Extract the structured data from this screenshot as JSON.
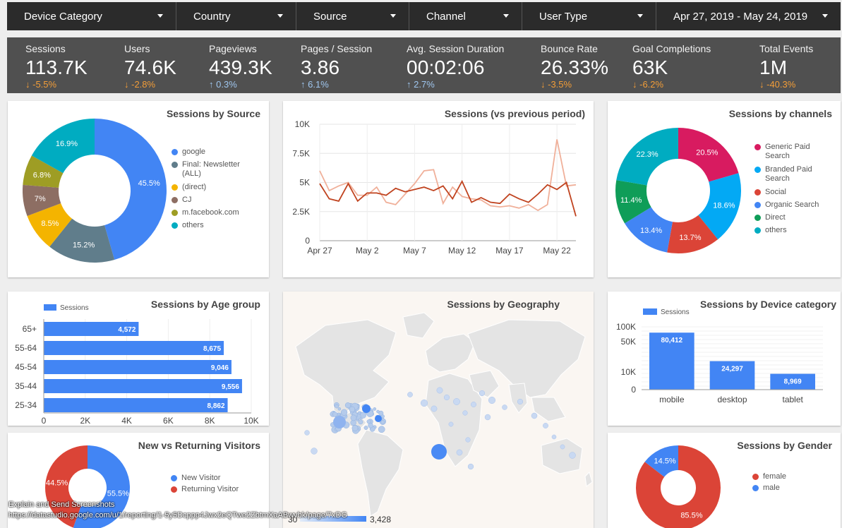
{
  "filters": [
    {
      "label": "Device Category"
    },
    {
      "label": "Country"
    },
    {
      "label": "Source"
    },
    {
      "label": "Channel"
    },
    {
      "label": "User Type"
    },
    {
      "label": "Apr 27, 2019 - May 24, 2019"
    }
  ],
  "kpis": [
    {
      "label": "Sessions",
      "value": "113.7K",
      "delta": "-5.5%",
      "dir": "down"
    },
    {
      "label": "Users",
      "value": "74.6K",
      "delta": "-2.8%",
      "dir": "down"
    },
    {
      "label": "Pageviews",
      "value": "439.3K",
      "delta": "0.3%",
      "dir": "up"
    },
    {
      "label": "Pages / Session",
      "value": "3.86",
      "delta": "6.1%",
      "dir": "up"
    },
    {
      "label": "Avg. Session Duration",
      "value": "00:02:06",
      "delta": "2.7%",
      "dir": "up"
    },
    {
      "label": "Bounce Rate",
      "value": "26.33%",
      "delta": "-3.5%",
      "dir": "down"
    },
    {
      "label": "Goal Completions",
      "value": "63K",
      "delta": "-6.2%",
      "dir": "down"
    },
    {
      "label": "Total Events",
      "value": "1M",
      "delta": "-40.3%",
      "dir": "down"
    }
  ],
  "colors": {
    "up": "#9fc6ee",
    "down": "#f29d38"
  },
  "chart_data": [
    {
      "id": "source",
      "type": "pie",
      "title": "Sessions by Source",
      "slices": [
        {
          "name": "google",
          "value": 45.5,
          "label": "45.5%",
          "color": "#4285f4"
        },
        {
          "name": "Final: Newsletter (ALL)",
          "value": 15.2,
          "label": "15.2%",
          "color": "#607d8b"
        },
        {
          "name": "(direct)",
          "value": 8.5,
          "label": "8.5%",
          "color": "#f4b400"
        },
        {
          "name": "CJ",
          "value": 7,
          "label": "7%",
          "color": "#8d6e63"
        },
        {
          "name": "m.facebook.com",
          "value": 6.8,
          "label": "6.8%",
          "color": "#9e9d24"
        },
        {
          "name": "others",
          "value": 16.9,
          "label": "16.9%",
          "color": "#00acc1"
        }
      ]
    },
    {
      "id": "trend",
      "type": "line",
      "title": "Sessions (vs previous period)",
      "x": [
        "Apr 27",
        "Apr 28",
        "Apr 29",
        "Apr 30",
        "May 1",
        "May 2",
        "May 3",
        "May 4",
        "May 5",
        "May 6",
        "May 7",
        "May 8",
        "May 9",
        "May 10",
        "May 11",
        "May 12",
        "May 13",
        "May 14",
        "May 15",
        "May 16",
        "May 17",
        "May 18",
        "May 19",
        "May 20",
        "May 21",
        "May 22",
        "May 23",
        "May 24"
      ],
      "xticks": [
        "Apr 27",
        "May 2",
        "May 7",
        "May 12",
        "May 17",
        "May 22"
      ],
      "yticks": [
        "0",
        "2.5K",
        "5K",
        "7.5K",
        "10K"
      ],
      "ylim": [
        0,
        10000
      ],
      "series": [
        {
          "values": [
            4900,
            3600,
            3400,
            4900,
            3400,
            4100,
            4100,
            3900,
            4500,
            4200,
            4400,
            4600,
            4300,
            4700,
            3600,
            5100,
            3300,
            3700,
            3300,
            3200,
            4000,
            3600,
            3300,
            4000,
            4800,
            4400,
            5000,
            2100
          ],
          "color": "#c0431f"
        },
        {
          "values": [
            6000,
            4300,
            4700,
            5000,
            3900,
            3900,
            4600,
            3300,
            3100,
            4000,
            4900,
            6000,
            6100,
            3200,
            4600,
            3800,
            3600,
            3500,
            3000,
            2900,
            3000,
            2800,
            3100,
            2600,
            3100,
            8700,
            4700,
            4800
          ],
          "color": "#f0b09a"
        }
      ]
    },
    {
      "id": "channels",
      "type": "pie",
      "title": "Sessions by channels",
      "slices": [
        {
          "name": "Generic Paid Search",
          "value": 20.5,
          "label": "20.5%",
          "color": "#d81b60"
        },
        {
          "name": "Branded Paid Search",
          "value": 18.6,
          "label": "18.6%",
          "color": "#03a9f4"
        },
        {
          "name": "Social",
          "value": 13.7,
          "label": "13.7%",
          "color": "#db4437"
        },
        {
          "name": "Organic Search",
          "value": 13.4,
          "label": "13.4%",
          "color": "#4285f4"
        },
        {
          "name": "Direct",
          "value": 11.4,
          "label": "11.4%",
          "color": "#0f9d58"
        },
        {
          "name": "others",
          "value": 22.3,
          "label": "22.3%",
          "color": "#00acc1"
        }
      ]
    },
    {
      "id": "age",
      "type": "bar",
      "title": "Sessions by Age group",
      "legend": "Sessions",
      "categories": [
        "65+",
        "55-64",
        "45-54",
        "35-44",
        "25-34"
      ],
      "values": [
        4572,
        8675,
        9046,
        9556,
        8862
      ],
      "labels": [
        "4,572",
        "8,675",
        "9,046",
        "9,556",
        "8,862"
      ],
      "xticks": [
        "0",
        "2K",
        "4K",
        "6K",
        "8K",
        "10K"
      ],
      "xlim": [
        0,
        10000
      ],
      "color": "#4285f4"
    },
    {
      "id": "device",
      "type": "bar",
      "title": "Sessions by Device category",
      "legend": "Sessions",
      "categories": [
        "mobile",
        "desktop",
        "tablet"
      ],
      "values": [
        80412,
        24297,
        8969
      ],
      "labels": [
        "80,412",
        "24,297",
        "8,969"
      ],
      "yticks": [
        "0",
        "10K",
        "50K",
        "100K"
      ],
      "color": "#4285f4"
    },
    {
      "id": "newret",
      "type": "pie",
      "title": "New vs Returning Visitors",
      "slices": [
        {
          "name": "New Visitor",
          "value": 55.5,
          "label": "55.5%",
          "color": "#4285f4"
        },
        {
          "name": "Returning Visitor",
          "value": 44.5,
          "label": "44.5%",
          "color": "#db4437"
        }
      ]
    },
    {
      "id": "gender",
      "type": "pie",
      "title": "Sessions by Gender",
      "slices": [
        {
          "name": "female",
          "value": 85.5,
          "label": "85.5%",
          "color": "#db4437"
        },
        {
          "name": "male",
          "value": 14.5,
          "label": "14.5%",
          "color": "#4285f4"
        }
      ]
    }
  ],
  "geo": {
    "title": "Sessions by Geography",
    "legend_min": "30",
    "legend_max": "3,428"
  },
  "overlay": {
    "caption": "Explain and Send Screenshots",
    "url": "https://datastudio.google.com/u/1/reporting/1-5y5Dcppp4Jwx2eQTwe2ZbtmXaABwvbk/page/7xDG"
  }
}
